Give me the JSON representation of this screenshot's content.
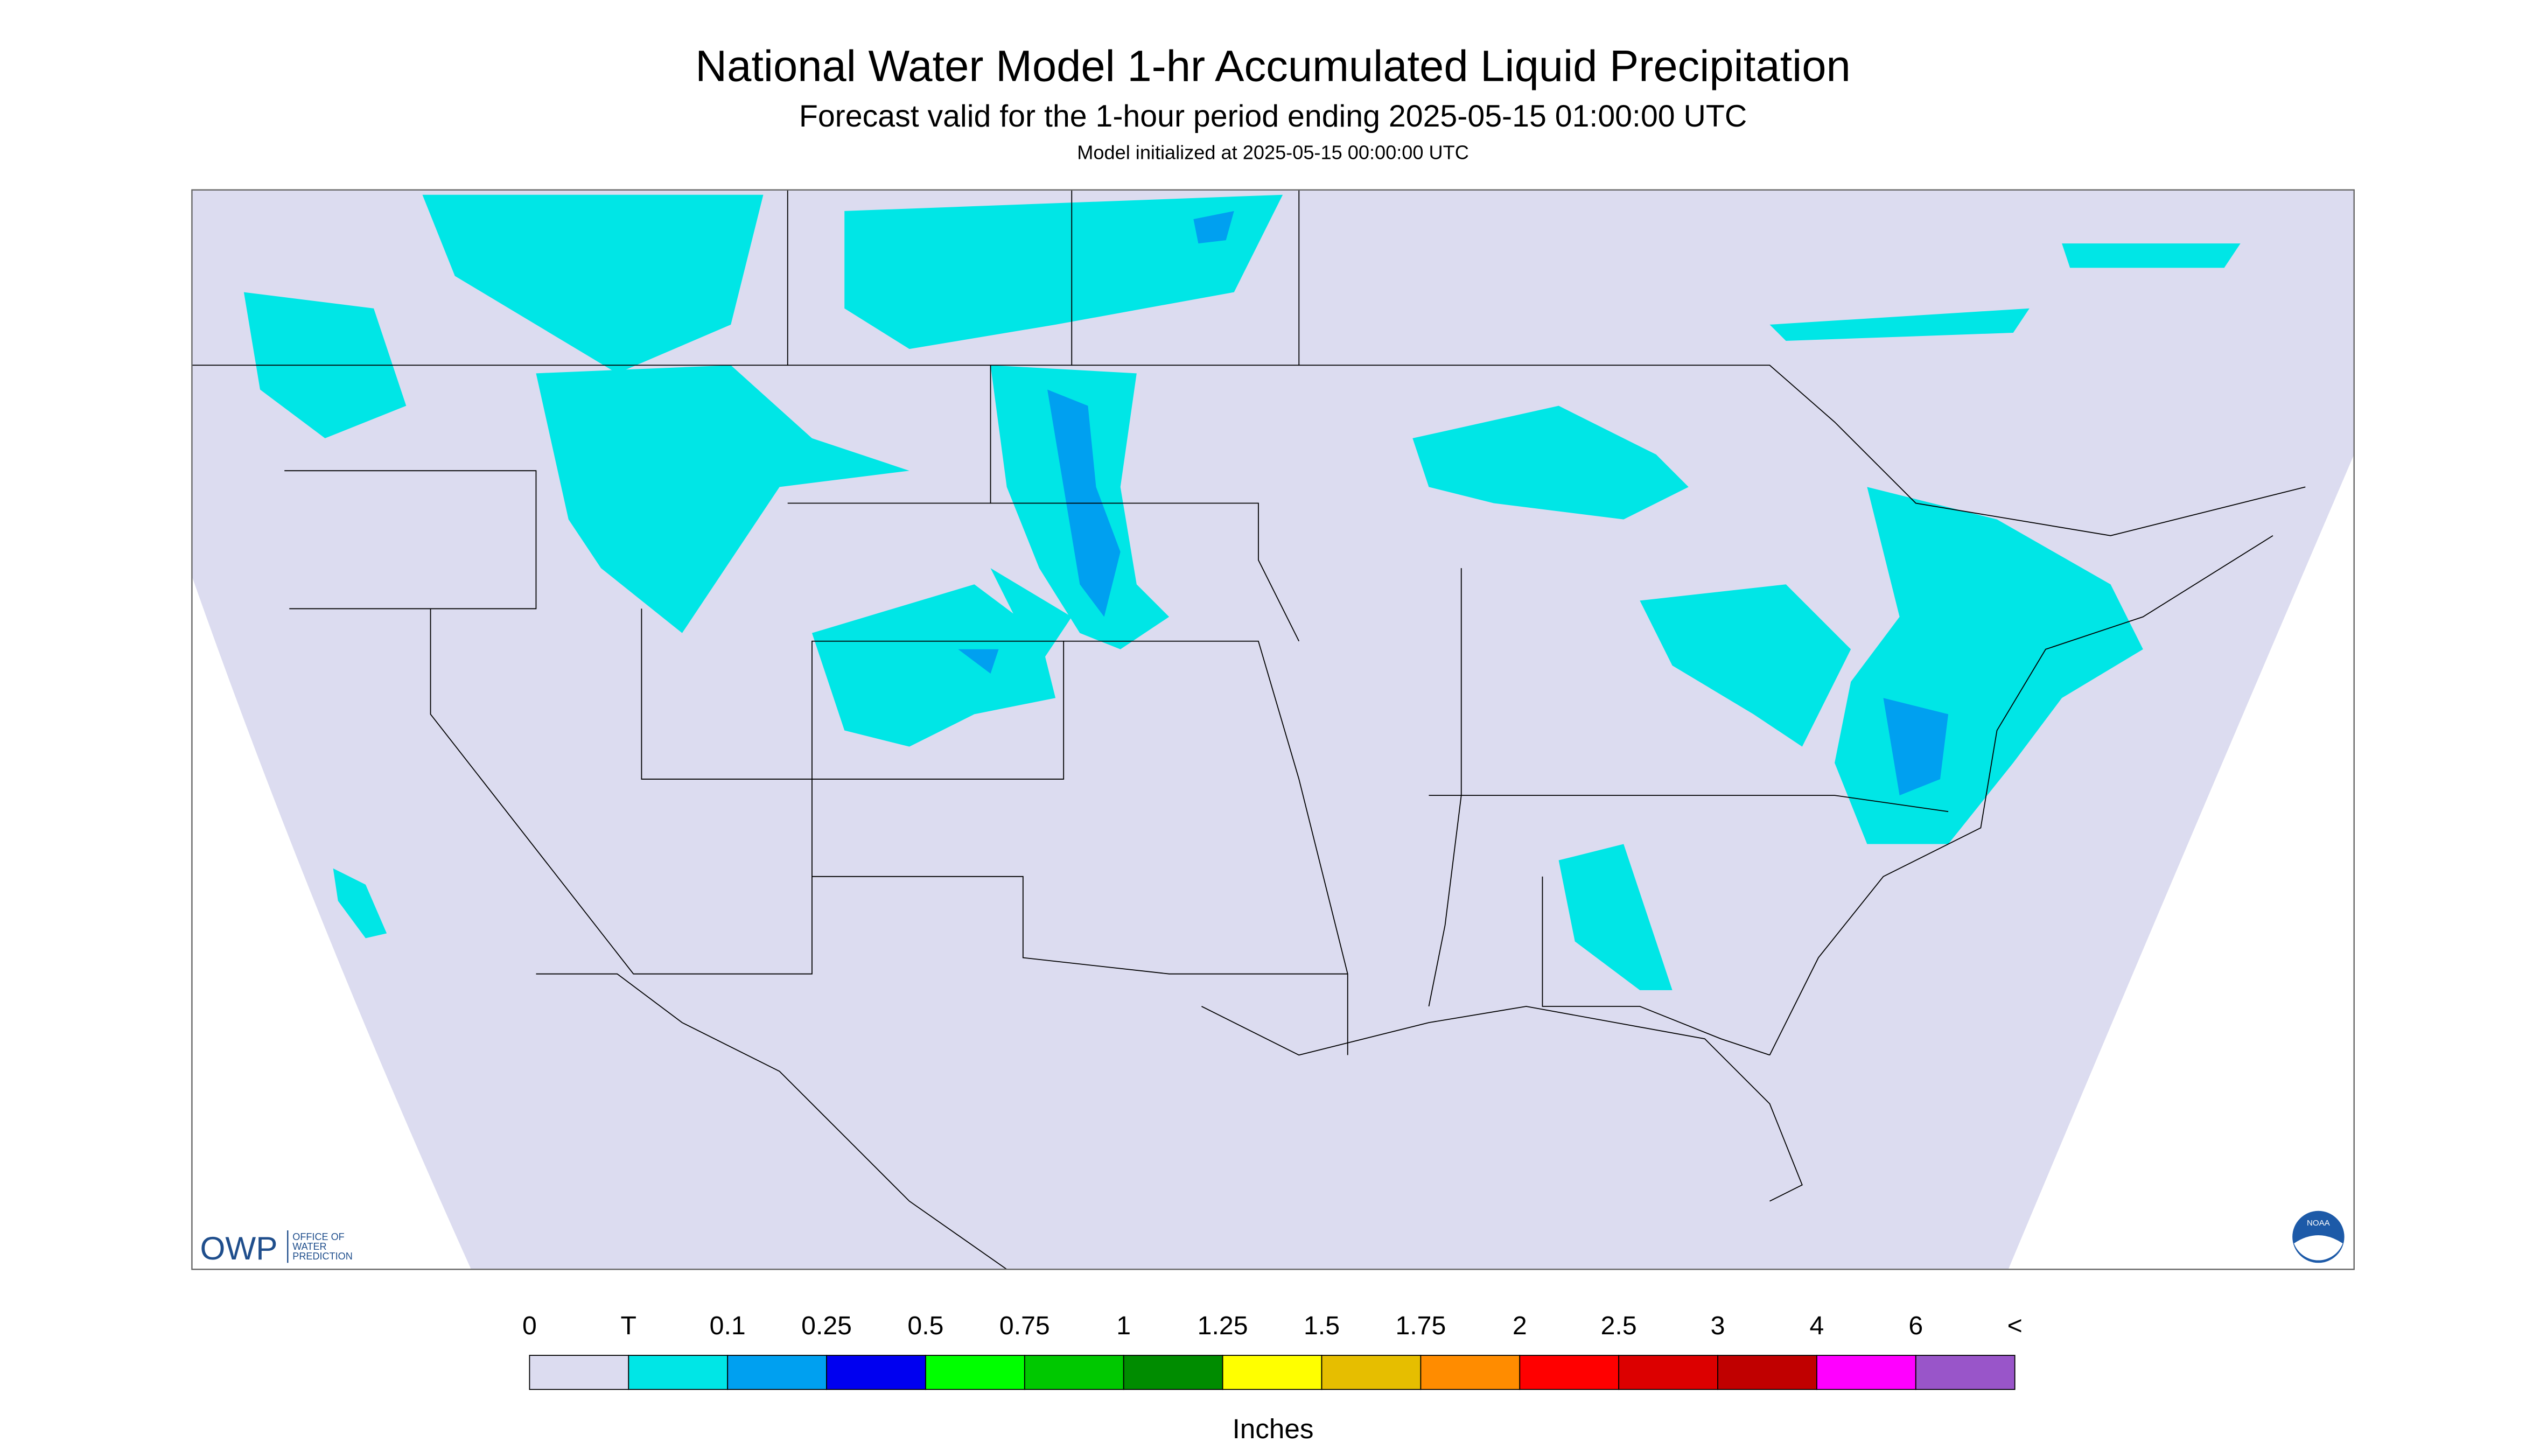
{
  "header": {
    "title": "National Water Model 1-hr Accumulated Liquid Precipitation",
    "subtitle": "Forecast valid for the 1-hour period ending 2025-05-15 01:00:00 UTC",
    "note": "Model initialized at 2025-05-15 00:00:00 UTC"
  },
  "logos": {
    "owp": "OWP",
    "owp_name": [
      "OFFICE OF",
      "WATER",
      "PREDICTION"
    ],
    "noaa": "NOAA"
  },
  "legend": {
    "labels": [
      "0",
      "T",
      "0.1",
      "0.25",
      "0.5",
      "0.75",
      "1",
      "1.25",
      "1.5",
      "1.75",
      "2",
      "2.5",
      "3",
      "4",
      "6",
      "<"
    ],
    "colors": [
      "#dcdcf0",
      "#00e6e6",
      "#00a0f0",
      "#0000f0",
      "#00ff00",
      "#00c800",
      "#008c00",
      "#ffff00",
      "#e6be00",
      "#ff8c00",
      "#ff0000",
      "#dc0000",
      "#c00000",
      "#ff00ff",
      "#9955c9"
    ],
    "unit": "Inches"
  }
}
